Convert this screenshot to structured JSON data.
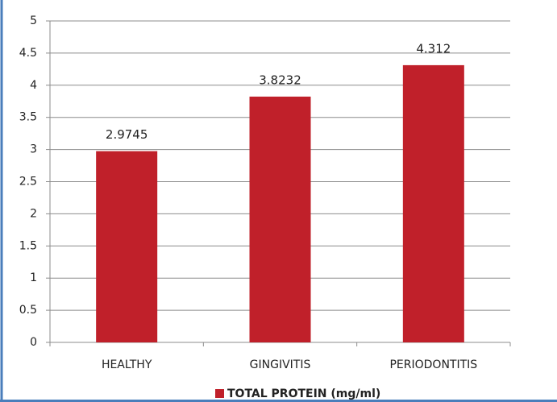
{
  "chart_data": {
    "type": "bar",
    "categories": [
      "HEALTHY",
      "GINGIVITIS",
      "PERIODONTITIS"
    ],
    "series": [
      {
        "name": "TOTAL PROTEIN (mg/ml)",
        "color": "#c0202a",
        "values": [
          2.9745,
          3.8232,
          4.312
        ]
      }
    ],
    "ylim": [
      0,
      5
    ],
    "yticks": [
      0,
      0.5,
      1,
      1.5,
      2,
      2.5,
      3,
      3.5,
      4,
      4.5,
      5
    ],
    "grid": true,
    "legend": "bottom"
  }
}
